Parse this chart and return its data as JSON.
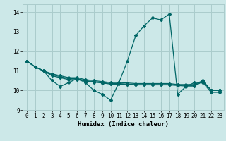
{
  "xlabel": "Humidex (Indice chaleur)",
  "xlim": [
    -0.5,
    23.5
  ],
  "ylim": [
    9.0,
    14.4
  ],
  "yticks": [
    9,
    10,
    11,
    12,
    13,
    14
  ],
  "xticks": [
    0,
    1,
    2,
    3,
    4,
    5,
    6,
    7,
    8,
    9,
    10,
    11,
    12,
    13,
    14,
    15,
    16,
    17,
    18,
    19,
    20,
    21,
    22,
    23
  ],
  "bg_color": "#cce8e8",
  "grid_color": "#aacccc",
  "line_color": "#006666",
  "lines": [
    {
      "x": [
        0,
        1,
        2,
        3,
        4,
        5,
        6,
        7,
        8,
        9,
        10,
        11,
        12,
        13,
        14,
        15,
        16,
        17,
        18,
        19,
        20,
        21,
        22,
        23
      ],
      "y": [
        11.5,
        11.2,
        11.0,
        10.5,
        10.2,
        10.4,
        10.6,
        10.4,
        10.0,
        9.8,
        9.5,
        10.4,
        11.5,
        12.8,
        13.3,
        13.7,
        13.6,
        13.9,
        9.8,
        10.2,
        10.4,
        10.4,
        9.9,
        9.9
      ]
    },
    {
      "x": [
        0,
        1,
        2,
        3,
        4,
        5,
        6,
        7,
        8,
        9,
        10,
        11,
        12,
        13,
        14,
        15,
        16,
        17,
        18,
        19,
        20,
        21,
        22,
        23
      ],
      "y": [
        11.5,
        11.2,
        11.0,
        10.85,
        10.75,
        10.65,
        10.65,
        10.55,
        10.5,
        10.45,
        10.4,
        10.4,
        10.38,
        10.35,
        10.35,
        10.35,
        10.35,
        10.35,
        10.3,
        10.3,
        10.3,
        10.5,
        10.0,
        10.0
      ]
    },
    {
      "x": [
        0,
        1,
        2,
        3,
        4,
        5,
        6,
        7,
        8,
        9,
        10,
        11,
        12,
        13,
        14,
        15,
        16,
        17,
        18,
        19,
        20,
        21,
        22,
        23
      ],
      "y": [
        11.5,
        11.2,
        11.0,
        10.8,
        10.7,
        10.6,
        10.6,
        10.5,
        10.45,
        10.4,
        10.35,
        10.35,
        10.32,
        10.3,
        10.3,
        10.3,
        10.3,
        10.3,
        10.28,
        10.25,
        10.25,
        10.48,
        10.0,
        10.0
      ]
    },
    {
      "x": [
        0,
        1,
        2,
        3,
        4,
        5,
        6,
        7,
        8,
        9,
        10,
        11,
        12,
        13,
        14,
        15,
        16,
        17,
        18,
        19,
        20,
        21,
        22,
        23
      ],
      "y": [
        11.5,
        11.2,
        11.0,
        10.75,
        10.65,
        10.55,
        10.55,
        10.48,
        10.42,
        10.38,
        10.32,
        10.32,
        10.3,
        10.28,
        10.28,
        10.28,
        10.28,
        10.28,
        10.25,
        10.22,
        10.22,
        10.45,
        10.0,
        10.0
      ]
    }
  ]
}
